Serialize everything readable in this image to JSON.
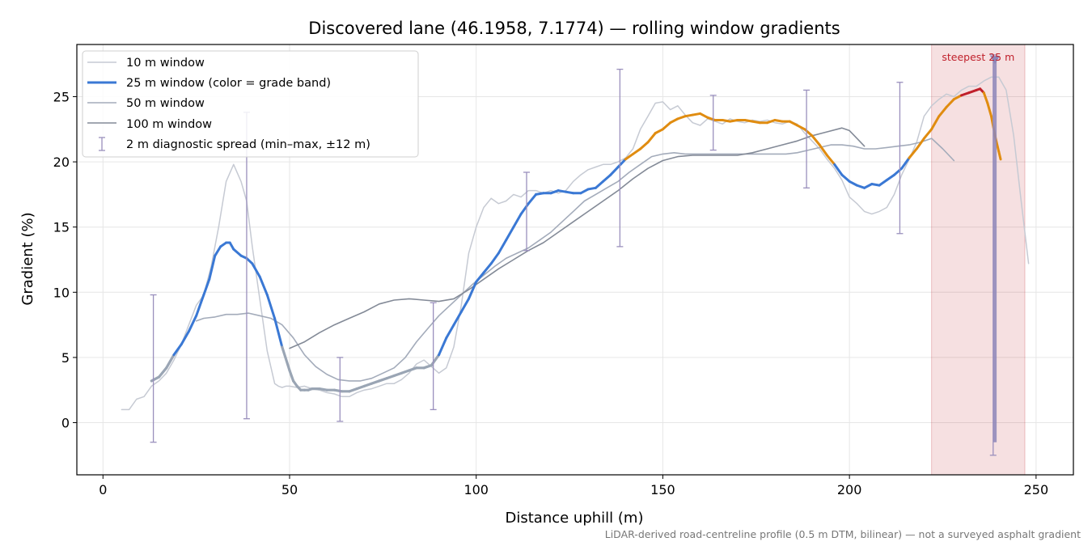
{
  "chart_data": {
    "type": "line",
    "title": "Discovered lane (46.1958, 7.1774) — rolling window gradients",
    "xlabel": "Distance uphill (m)",
    "ylabel": "Gradient (%)",
    "xlim": [
      -7,
      260
    ],
    "ylim": [
      -4,
      29
    ],
    "xticks": [
      0,
      50,
      100,
      150,
      200,
      250
    ],
    "yticks": [
      0,
      5,
      10,
      15,
      20,
      25
    ],
    "grid": true,
    "legend_position": "top-left",
    "footnote": "LiDAR-derived road-centreline profile (0.5 m DTM, bilinear) — not a surveyed asphalt gradient",
    "series": [
      {
        "name": "10 m window",
        "color": "#c6cad3",
        "x": [
          5,
          7,
          9,
          11,
          13,
          15,
          17,
          19,
          21,
          23,
          25,
          27,
          29,
          31,
          33,
          35,
          37,
          38.5,
          40,
          42,
          44,
          46,
          47,
          48,
          49,
          50,
          52,
          54,
          56,
          58,
          60,
          62,
          64,
          66,
          68,
          70,
          72,
          74,
          76,
          78,
          80,
          82,
          84,
          86,
          88,
          90,
          92,
          94,
          96,
          98,
          100,
          102,
          104,
          106,
          108,
          110,
          112,
          114,
          116,
          118,
          120,
          122,
          124,
          126,
          128,
          130,
          132,
          134,
          136,
          138,
          140,
          142,
          144,
          146,
          148,
          150,
          152,
          154,
          156,
          158,
          160,
          162,
          164,
          166,
          168,
          170,
          172,
          174,
          176,
          178,
          180,
          182,
          184,
          186,
          188,
          190,
          192,
          194,
          196,
          198,
          200,
          202,
          204,
          206,
          208,
          210,
          212,
          214,
          216,
          218,
          220,
          222,
          224,
          226,
          228,
          230,
          232,
          234,
          236,
          238,
          240,
          242,
          244,
          246,
          248
        ],
        "values": [
          1.0,
          1.0,
          1.8,
          2.0,
          2.8,
          3.2,
          3.8,
          4.8,
          6.0,
          7.5,
          9.0,
          9.8,
          12.0,
          15.0,
          18.5,
          19.8,
          18.5,
          17.0,
          13.5,
          9.5,
          5.5,
          3.0,
          2.8,
          2.7,
          2.8,
          2.8,
          2.7,
          2.8,
          2.6,
          2.5,
          2.3,
          2.2,
          2.0,
          2.0,
          2.3,
          2.5,
          2.6,
          2.8,
          3.0,
          3.0,
          3.3,
          3.8,
          4.5,
          4.8,
          4.3,
          3.8,
          4.2,
          5.8,
          9.0,
          13.0,
          15.0,
          16.5,
          17.2,
          16.8,
          17.0,
          17.5,
          17.3,
          17.8,
          17.8,
          17.6,
          17.8,
          17.6,
          17.8,
          18.5,
          19.0,
          19.4,
          19.6,
          19.8,
          19.8,
          20.0,
          20.3,
          21.0,
          22.5,
          23.5,
          24.5,
          24.6,
          24.0,
          24.3,
          23.6,
          23.0,
          22.8,
          23.3,
          23.1,
          22.9,
          23.3,
          23.1,
          23.0,
          23.2,
          23.1,
          23.2,
          23.0,
          22.9,
          23.1,
          22.9,
          22.2,
          21.6,
          21.0,
          20.2,
          19.5,
          18.6,
          17.3,
          16.8,
          16.2,
          16.0,
          16.2,
          16.5,
          17.5,
          19.0,
          20.2,
          21.5,
          23.5,
          24.3,
          24.8,
          25.2,
          25.0,
          25.5,
          25.8,
          25.8,
          26.2,
          26.5,
          26.5,
          25.5,
          22.0,
          17.0,
          12.2
        ]
      },
      {
        "name": "25 m window (color = grade band)",
        "color": "#3a78d4",
        "band_colors": {
          "below_5": "#9aa5b4",
          "5_to_20": "#3a78d4",
          "20_to_25": "#e08c10",
          "above_25": "#c0202b"
        },
        "x": [
          13,
          15,
          17,
          19,
          21,
          23,
          25,
          27,
          28.5,
          30,
          31.5,
          33,
          34,
          35,
          37,
          38.5,
          40,
          42,
          44,
          46,
          48,
          50,
          51,
          52,
          53,
          54,
          55,
          56,
          58,
          60,
          62,
          64,
          66,
          68,
          70,
          72,
          74,
          76,
          78,
          80,
          82,
          84,
          86,
          88,
          90,
          92,
          94,
          96,
          98,
          100,
          102,
          104,
          106,
          108,
          110,
          112,
          114,
          116,
          118,
          120,
          122,
          124,
          126,
          128,
          130,
          132,
          134,
          136,
          138,
          140,
          142,
          144,
          146,
          148,
          150,
          152,
          154,
          156,
          158,
          160,
          162,
          164,
          166,
          168,
          170,
          172,
          174,
          176,
          178,
          180,
          182,
          184,
          186,
          188,
          190,
          192,
          194,
          196,
          198,
          200,
          202,
          204,
          206,
          208,
          210,
          212,
          214,
          216,
          218,
          220,
          222,
          224,
          226,
          228,
          230,
          232,
          234,
          235,
          236,
          237,
          238,
          239,
          240,
          240.5
        ],
        "values": [
          3.2,
          3.5,
          4.2,
          5.2,
          6.0,
          7.0,
          8.2,
          9.8,
          11.0,
          12.8,
          13.5,
          13.8,
          13.8,
          13.3,
          12.8,
          12.6,
          12.2,
          11.2,
          9.8,
          8.0,
          5.8,
          4.0,
          3.2,
          2.8,
          2.5,
          2.5,
          2.5,
          2.6,
          2.6,
          2.5,
          2.5,
          2.4,
          2.4,
          2.6,
          2.8,
          3.0,
          3.2,
          3.4,
          3.6,
          3.8,
          4.0,
          4.2,
          4.2,
          4.4,
          5.2,
          6.5,
          7.5,
          8.5,
          9.5,
          10.8,
          11.5,
          12.2,
          13.0,
          14.0,
          15.0,
          16.0,
          16.8,
          17.5,
          17.6,
          17.6,
          17.8,
          17.7,
          17.6,
          17.6,
          17.9,
          18.0,
          18.5,
          19.0,
          19.6,
          20.2,
          20.6,
          21.0,
          21.5,
          22.2,
          22.5,
          23.0,
          23.3,
          23.5,
          23.6,
          23.7,
          23.4,
          23.2,
          23.2,
          23.1,
          23.2,
          23.2,
          23.1,
          23.0,
          23.0,
          23.2,
          23.1,
          23.1,
          22.8,
          22.5,
          22.0,
          21.3,
          20.5,
          19.8,
          19.0,
          18.5,
          18.2,
          18.0,
          18.3,
          18.2,
          18.6,
          19.0,
          19.5,
          20.3,
          21.0,
          21.8,
          22.5,
          23.5,
          24.2,
          24.8,
          25.1,
          25.3,
          25.5,
          25.6,
          25.3,
          24.5,
          23.5,
          22.0,
          20.8,
          20.2
        ]
      },
      {
        "name": "50 m window",
        "color": "#a3abba",
        "x": [
          25,
          27,
          30,
          33,
          36,
          39,
          42,
          45,
          48,
          51,
          54,
          57,
          60,
          63,
          66,
          69,
          72,
          75,
          78,
          81,
          84,
          87,
          90,
          93,
          96,
          99,
          102,
          105,
          108,
          111,
          114,
          117,
          120,
          123,
          126,
          129,
          132,
          135,
          138,
          141,
          144,
          147,
          150,
          153,
          156,
          159,
          162,
          165,
          168,
          171,
          174,
          177,
          180,
          183,
          186,
          189,
          192,
          195,
          198,
          201,
          204,
          207,
          210,
          213,
          216,
          219,
          222,
          225,
          228
        ],
        "values": [
          7.8,
          8.0,
          8.1,
          8.3,
          8.3,
          8.4,
          8.2,
          8.0,
          7.5,
          6.5,
          5.2,
          4.3,
          3.7,
          3.3,
          3.2,
          3.2,
          3.4,
          3.8,
          4.2,
          5.0,
          6.2,
          7.2,
          8.2,
          9.0,
          9.8,
          10.6,
          11.3,
          12.0,
          12.6,
          13.0,
          13.4,
          14.0,
          14.6,
          15.4,
          16.2,
          17.0,
          17.5,
          18.0,
          18.5,
          19.2,
          19.8,
          20.4,
          20.6,
          20.7,
          20.6,
          20.6,
          20.6,
          20.6,
          20.6,
          20.6,
          20.6,
          20.6,
          20.6,
          20.6,
          20.7,
          20.9,
          21.1,
          21.3,
          21.3,
          21.2,
          21.0,
          21.0,
          21.1,
          21.2,
          21.3,
          21.5,
          21.8,
          21.0,
          20.1
        ]
      },
      {
        "name": "100 m window",
        "color": "#838a97",
        "x": [
          50,
          54,
          58,
          62,
          66,
          70,
          74,
          78,
          82,
          86,
          90,
          94,
          98,
          102,
          106,
          110,
          114,
          118,
          122,
          126,
          130,
          134,
          138,
          142,
          146,
          150,
          154,
          158,
          162,
          166,
          170,
          174,
          178,
          182,
          186,
          190,
          194,
          198,
          200,
          202,
          204
        ],
        "values": [
          5.7,
          6.2,
          6.9,
          7.5,
          8.0,
          8.5,
          9.1,
          9.4,
          9.5,
          9.4,
          9.3,
          9.5,
          10.2,
          11.0,
          11.8,
          12.5,
          13.2,
          13.8,
          14.6,
          15.4,
          16.2,
          17.0,
          17.8,
          18.7,
          19.5,
          20.1,
          20.4,
          20.5,
          20.5,
          20.5,
          20.5,
          20.7,
          21.0,
          21.3,
          21.6,
          22.0,
          22.3,
          22.6,
          22.4,
          21.8,
          21.2
        ]
      }
    ],
    "error_bars": {
      "name": "2 m diagnostic spread (min–max, ±12 m)",
      "color": "#9a90bd",
      "x": [
        13.5,
        38.5,
        63.5,
        88.5,
        113.5,
        138.5,
        163.5,
        188.5,
        213.5,
        238.5
      ],
      "min": [
        -1.5,
        0.3,
        0.1,
        1.0,
        13.2,
        13.5,
        20.9,
        18.0,
        14.5,
        -2.5
      ],
      "max": [
        9.8,
        23.8,
        5.0,
        9.2,
        19.2,
        27.1,
        25.1,
        25.5,
        26.1,
        28.2
      ]
    },
    "highlight": {
      "label": "steepest 25 m",
      "color": "#c0202b",
      "x_start": 222,
      "x_end": 247,
      "marker_x": 239,
      "marker_from": 28.0,
      "marker_to": -1.5
    }
  }
}
